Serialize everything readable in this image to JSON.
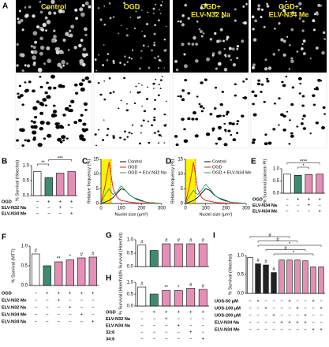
{
  "image_panel": {
    "panel": "A",
    "labels": [
      [
        "Control"
      ],
      [
        "OGD"
      ],
      [
        "OGD+",
        "ELV-N32 Na"
      ],
      [
        "OGD+",
        "ELV-N34 Me"
      ]
    ]
  },
  "chart_data": [
    {
      "type": "bar",
      "panel": "B",
      "ylabel": "% Survival (Hoechst)",
      "ylim": [
        0,
        1
      ],
      "yticks": [
        {
          "value": 0,
          "label": "0.0"
        },
        0.5,
        {
          "value": 1,
          "label": "1.0"
        }
      ],
      "values": [
        0.8,
        0.6,
        0.75,
        0.8
      ],
      "colors": [
        "#ffffff",
        "#3d8c72",
        "#e58fb6",
        "#e58fb6"
      ],
      "brackets": [
        {
          "text": "**",
          "from": 0,
          "to": 1
        },
        {
          "text": "***",
          "from": 1,
          "to": 3
        }
      ],
      "rows": [
        {
          "label": "OGD",
          "signs": [
            "−",
            "+",
            "+",
            "+"
          ]
        },
        {
          "label": "ELV-N32 Na",
          "signs": [
            "−",
            "−",
            "+",
            "−"
          ]
        },
        {
          "label": "ELV-N34 Me",
          "signs": [
            "−",
            "−",
            "−",
            "+"
          ]
        }
      ]
    },
    {
      "type": "line",
      "panel": "C",
      "ylabel": "Relative frequency (%)",
      "xlabel": "Nuclei size (μm²)",
      "xlim": [
        0,
        300
      ],
      "xticks": [
        0,
        100,
        200,
        300
      ],
      "ylim": [
        0,
        15
      ],
      "yticks": [
        0,
        5,
        10,
        15
      ],
      "highlight": [
        0,
        50
      ],
      "x": [
        0,
        20,
        40,
        60,
        80,
        100,
        120,
        140,
        160,
        180,
        200,
        220,
        240,
        260,
        280,
        300
      ],
      "series": [
        {
          "name": "Control",
          "color": "#000000",
          "values": [
            0,
            0.5,
            1,
            2,
            3.5,
            5,
            4.5,
            3,
            2,
            1.5,
            1,
            0.5,
            0.3,
            0.2,
            0.1,
            0
          ]
        },
        {
          "name": "OGD",
          "color": "#d62020",
          "values": [
            0,
            6,
            14,
            5,
            2,
            1,
            0.8,
            0.5,
            0.3,
            0.2,
            0.1,
            0.1,
            0,
            0,
            0,
            0
          ]
        },
        {
          "name": "OGD + ELV-N32 Na",
          "color": "#2e9a6a",
          "values": [
            0,
            3,
            5,
            3,
            4,
            6,
            4.5,
            3,
            2,
            1.2,
            0.8,
            0.5,
            0.3,
            0.2,
            0.1,
            0
          ]
        }
      ]
    },
    {
      "type": "line",
      "panel": "D",
      "ylabel": "Relative frequency (%)",
      "xlabel": "Nuclei size (μm²)",
      "xlim": [
        0,
        300
      ],
      "xticks": [
        0,
        100,
        200,
        300
      ],
      "ylim": [
        0,
        15
      ],
      "yticks": [
        0,
        5,
        10,
        15
      ],
      "highlight": [
        0,
        50
      ],
      "x": [
        0,
        20,
        40,
        60,
        80,
        100,
        120,
        140,
        160,
        180,
        200,
        220,
        240,
        260,
        280,
        300
      ],
      "series": [
        {
          "name": "Control",
          "color": "#000000",
          "values": [
            0,
            0.5,
            1,
            2,
            3.5,
            5,
            4.5,
            3,
            2,
            1.5,
            1,
            0.5,
            0.3,
            0.2,
            0.1,
            0
          ]
        },
        {
          "name": "OGD",
          "color": "#d62020",
          "values": [
            0,
            6,
            14,
            5,
            2,
            1,
            0.8,
            0.5,
            0.3,
            0.2,
            0.1,
            0.1,
            0,
            0,
            0,
            0
          ]
        },
        {
          "name": "OGD + ELV-N34 Me",
          "color": "#2e9a6a",
          "values": [
            0,
            2.5,
            4.5,
            3,
            4.5,
            6.5,
            5,
            3.2,
            2,
            1.2,
            0.8,
            0.5,
            0.3,
            0.2,
            0.1,
            0
          ]
        }
      ]
    },
    {
      "type": "bar",
      "panel": "E",
      "ylabel": "% Survival (calcein PI)",
      "ylim": [
        0,
        1
      ],
      "yticks": [
        {
          "value": 0,
          "label": "0.0"
        },
        0.5,
        {
          "value": 1,
          "label": "1.0"
        }
      ],
      "values": [
        0.78,
        0.73,
        0.76,
        0.78
      ],
      "colors": [
        "#ffffff",
        "#3d8c72",
        "#e58fb6",
        "#e58fb6"
      ],
      "brackets": [
        {
          "text": "*",
          "from": 1,
          "to": 2
        },
        {
          "text": "****",
          "from": 0,
          "to": 3
        }
      ],
      "rows": [
        {
          "label": "OGD",
          "signs": [
            "−",
            "+",
            "+",
            "+"
          ]
        },
        {
          "label": "ELV-N34 Na",
          "signs": [
            "−",
            "−",
            "+",
            "−"
          ]
        },
        {
          "label": "ELV-N34 Me",
          "signs": [
            "−",
            "−",
            "−",
            "+"
          ]
        }
      ]
    },
    {
      "type": "bar",
      "panel": "F",
      "ylabel": "% Survival (MTT)",
      "ylim": [
        0,
        1
      ],
      "yticks": [
        {
          "value": 0,
          "label": "0.0"
        },
        0.5,
        {
          "value": 1,
          "label": "1.0"
        }
      ],
      "values": [
        0.8,
        0.5,
        0.6,
        0.65,
        0.7,
        0.72
      ],
      "colors": [
        "#ffffff",
        "#3d8c72",
        "#e58fb6",
        "#e58fb6",
        "#e58fb6",
        "#e58fb6"
      ],
      "bar_labels": [
        "#",
        null,
        "**",
        "*",
        "#",
        "#"
      ],
      "rows": [
        {
          "label": "OGD",
          "signs": [
            "−",
            "+",
            "+",
            "+",
            "+",
            "+"
          ]
        },
        {
          "label": "ELV-N32 Me",
          "signs": [
            "−",
            "−",
            "+",
            "−",
            "−",
            "−"
          ]
        },
        {
          "label": "ELV-N32 Na",
          "signs": [
            "−",
            "−",
            "−",
            "+",
            "−",
            "−"
          ]
        },
        {
          "label": "ELV-N34 Me",
          "signs": [
            "−",
            "−",
            "−",
            "−",
            "+",
            "−"
          ]
        },
        {
          "label": "ELV-N34 Na",
          "signs": [
            "−",
            "−",
            "−",
            "−",
            "−",
            "+"
          ]
        }
      ]
    },
    {
      "type": "bar",
      "panel": "G",
      "ylabel": "% Survival (Hoechst)",
      "ylim": [
        0,
        1
      ],
      "yticks": [
        {
          "value": 0,
          "label": "0.0"
        },
        0.5,
        {
          "value": 1,
          "label": "1.0"
        }
      ],
      "values": [
        0.8,
        0.6,
        0.85,
        0.85,
        0.85,
        0.85
      ],
      "colors": [
        "#ffffff",
        "#3d8c72",
        "#e58fb6",
        "#e58fb6",
        "#e58fb6",
        "#e58fb6"
      ],
      "bar_labels": [
        "#",
        null,
        "#",
        "#",
        "#",
        "#"
      ]
    },
    {
      "type": "bar",
      "panel": "H",
      "ylabel": "% Survival (Hoechst)",
      "ylim": [
        0,
        1
      ],
      "yticks": [
        {
          "value": 0,
          "label": "0.0"
        },
        0.5,
        {
          "value": 1,
          "label": "1.0"
        }
      ],
      "values": [
        0.8,
        0.5,
        0.65,
        0.65,
        0.75,
        0.7
      ],
      "colors": [
        "#ffffff",
        "#3d8c72",
        "#e58fb6",
        "#e58fb6",
        "#e58fb6",
        "#e58fb6"
      ],
      "bar_labels": [
        "#",
        null,
        "**",
        "*",
        "#",
        "#"
      ],
      "rows": [
        {
          "label": "OGD",
          "signs": [
            "−",
            "+",
            "+",
            "+",
            "+",
            "+"
          ]
        },
        {
          "label": "ELV-N32 Na",
          "signs": [
            "−",
            "−",
            "+",
            "−",
            "−",
            "−"
          ]
        },
        {
          "label": "ELV-N34 Na",
          "signs": [
            "−",
            "−",
            "−",
            "+",
            "−",
            "−"
          ]
        },
        {
          "label": "32:6",
          "signs": [
            "−",
            "−",
            "−",
            "−",
            "+",
            "−"
          ]
        },
        {
          "label": "34:6",
          "signs": [
            "−",
            "−",
            "−",
            "−",
            "−",
            "+"
          ]
        }
      ]
    },
    {
      "type": "bar",
      "panel": "I",
      "ylabel": "% Survival (Hoechst)",
      "ylim": [
        0,
        1
      ],
      "yticks": [
        {
          "value": 0,
          "label": "0.0"
        },
        0.5,
        {
          "value": 1,
          "label": "1.0"
        }
      ],
      "values": [
        0.95,
        0.78,
        0.75,
        0.55,
        0.88,
        0.88,
        0.88,
        0.86,
        0.7,
        0.7
      ],
      "colors": [
        "#ffffff",
        "#222222",
        "#222222",
        "#222222",
        "#e58fb6",
        "#e58fb6",
        "#e58fb6",
        "#e58fb6",
        "#e58fb6",
        "#e58fb6"
      ],
      "bar_labels": [
        null,
        "#",
        "#",
        "#",
        null,
        null,
        null,
        null,
        null,
        null
      ],
      "brackets": [
        {
          "text": "*",
          "from": 3,
          "to": 8
        },
        {
          "text": "#",
          "from": 2,
          "to": 7
        },
        {
          "text": "*",
          "from": 1,
          "to": 9
        },
        {
          "text": "#",
          "from": 1,
          "to": 6
        },
        {
          "text": "#",
          "from": 0,
          "to": 5
        }
      ],
      "rows": [
        {
          "label": "UOS-50 μM",
          "signs": [
            "−",
            "+",
            "−",
            "−",
            "−",
            "+",
            "−",
            "−",
            "+",
            "−"
          ]
        },
        {
          "label": "UOS-100 μM",
          "signs": [
            "−",
            "−",
            "+",
            "−",
            "−",
            "−",
            "+",
            "−",
            "−",
            "+"
          ]
        },
        {
          "label": "UOS-200 μM",
          "signs": [
            "−",
            "−",
            "−",
            "+",
            "−",
            "−",
            "−",
            "+",
            "−",
            "−"
          ]
        },
        {
          "label": "ELV-N34 Na",
          "signs": [
            "−",
            "−",
            "−",
            "−",
            "+",
            "+",
            "+",
            "+",
            "−",
            "−"
          ]
        },
        {
          "label": "ELV-N34 Me",
          "signs": [
            "−",
            "−",
            "−",
            "−",
            "−",
            "−",
            "−",
            "−",
            "+",
            "+"
          ]
        }
      ]
    }
  ]
}
